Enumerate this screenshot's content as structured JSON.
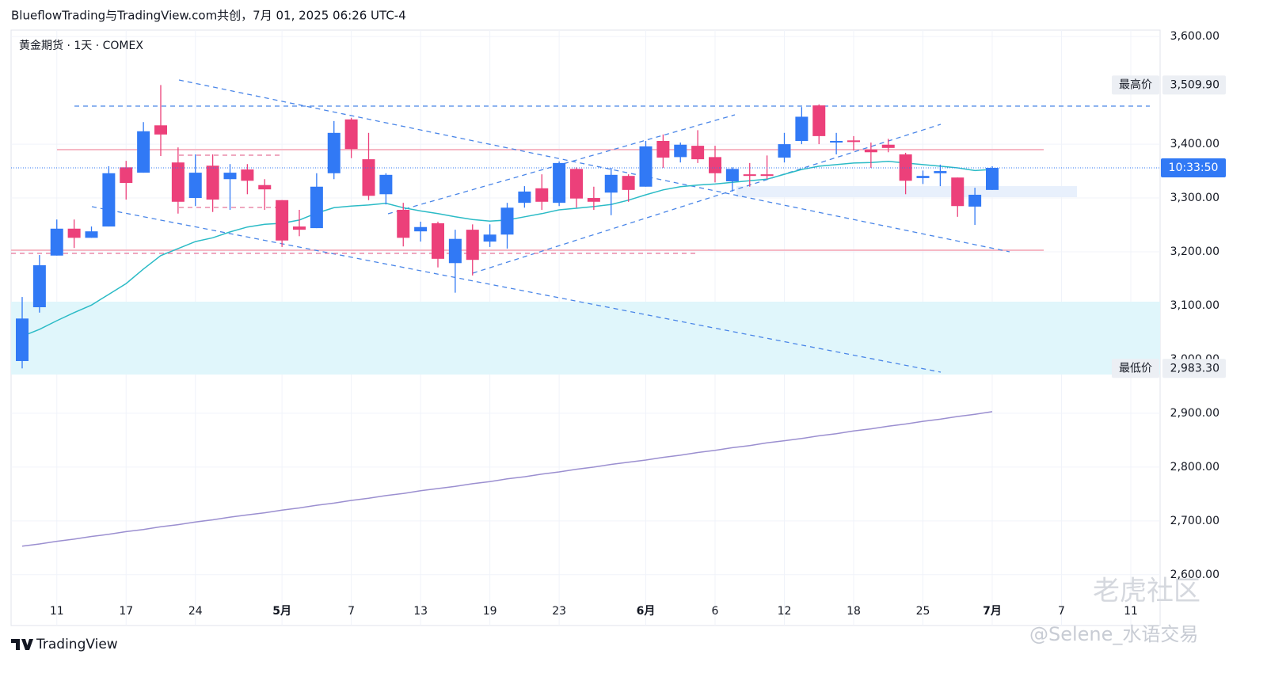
{
  "header": {
    "title": "BlueflowTrading与TradingView.com共创，7月 01, 2025 06:26 UTC-4"
  },
  "footer": {
    "logo": "TradingView",
    "watermark": "老虎社区",
    "author": "@Selene_水语交易"
  },
  "chart_data": {
    "type": "candlestick",
    "title": "黄金期货 · 1天 · COMEX",
    "categories": [
      null,
      null,
      "11",
      null,
      null,
      null,
      "17",
      null,
      null,
      null,
      "24",
      null,
      null,
      null,
      null,
      "5月",
      null,
      null,
      null,
      "7",
      null,
      null,
      null,
      "13",
      null,
      null,
      null,
      "19",
      null,
      null,
      null,
      "23",
      null,
      null,
      null,
      null,
      "6月",
      null,
      null,
      null,
      "6",
      null,
      null,
      null,
      "12",
      null,
      null,
      null,
      "18",
      null,
      null,
      null,
      "25",
      null,
      null,
      null,
      "7月",
      null,
      null,
      null,
      "7",
      null,
      null,
      null,
      "11"
    ],
    "open": [
      2997,
      3097,
      3193,
      3243,
      3226,
      3247,
      3357,
      3347,
      3435,
      3366,
      3300,
      3360,
      3335,
      3353,
      3324,
      3296,
      3247,
      3244,
      3346,
      3446,
      3372,
      3307,
      3278,
      3238,
      3253,
      3179,
      3241,
      3219,
      3232,
      3291,
      3318,
      3291,
      3354,
      3300,
      3310,
      3341,
      3321,
      3406,
      3376,
      3397,
      3376,
      3331,
      3344,
      3344,
      3375,
      3406,
      3472,
      3403,
      3407,
      3390,
      3399,
      3381,
      3337,
      3346,
      3338,
      3284,
      3315,
      null,
      null,
      null,
      null,
      null,
      null,
      null,
      null
    ],
    "high": [
      3116,
      3194,
      3260,
      3260,
      3247,
      3359,
      3369,
      3441,
      3509.9,
      3394,
      3381,
      3381,
      3363,
      3363,
      3335,
      3296,
      3278,
      3346,
      3443,
      3449,
      3421,
      3346,
      3291,
      3256,
      3256,
      3241,
      3251,
      3251,
      3291,
      3322,
      3344,
      3368,
      3357,
      3321,
      3356,
      3344,
      3406,
      3418,
      3403,
      3426,
      3397,
      3357,
      3365,
      3379,
      3421,
      3469,
      3474,
      3421,
      3415,
      3403,
      3410,
      3384,
      3351,
      3362,
      3338,
      3319,
      3359,
      null,
      null,
      null,
      null,
      null,
      null,
      null,
      null
    ],
    "low": [
      2983.3,
      3087,
      3193,
      3207,
      3226,
      3247,
      3297,
      3347,
      3378,
      3271,
      3285,
      3274,
      3278,
      3307,
      3278,
      3209,
      3229,
      3244,
      3335,
      3374,
      3296,
      3288,
      3210,
      3219,
      3171,
      3124,
      3156,
      3209,
      3206,
      3282,
      3278,
      3285,
      3282,
      3278,
      3268,
      3293,
      3321,
      3356,
      3366,
      3365,
      3329,
      3312,
      3321,
      3335,
      3366,
      3400,
      3400,
      3381,
      3388,
      3356,
      3385,
      3307,
      3326,
      3322,
      3265,
      3250,
      3315,
      null,
      null,
      null,
      null,
      null,
      null,
      null,
      null
    ],
    "close": [
      3076,
      3175,
      3243,
      3226,
      3238,
      3346,
      3328,
      3424,
      3418,
      3293,
      3347,
      3297,
      3347,
      3332,
      3316,
      3221,
      3241,
      3321,
      3421,
      3391,
      3304,
      3343,
      3226,
      3246,
      3187,
      3224,
      3185,
      3232,
      3282,
      3312,
      3293,
      3365,
      3299,
      3293,
      3343,
      3315,
      3396,
      3375,
      3399,
      3372,
      3346,
      3354,
      3341,
      3341,
      3400,
      3451,
      3415,
      3406,
      3404,
      3385,
      3393,
      3332,
      3341,
      3350,
      3285,
      3306,
      3356,
      null,
      null,
      null,
      null,
      null,
      null,
      null,
      null
    ],
    "up_color": "#3179f5",
    "down_color": "#ec407a",
    "series": [
      {
        "color": "#2bbbc6",
        "values": [
          3043,
          3056,
          3072,
          3087,
          3101,
          3121,
          3141,
          3168,
          3193,
          3206,
          3219,
          3226,
          3237,
          3246,
          3251,
          3253,
          3259,
          3272,
          3282,
          3285,
          3287,
          3290,
          3282,
          3276,
          3271,
          3265,
          3260,
          3257,
          3259,
          3265,
          3271,
          3278,
          3281,
          3284,
          3288,
          3296,
          3306,
          3315,
          3321,
          3324,
          3326,
          3329,
          3332,
          3335,
          3344,
          3353,
          3359,
          3362,
          3365,
          3366,
          3368,
          3365,
          3362,
          3359,
          3356,
          3351,
          3353,
          null,
          null,
          null,
          null,
          null,
          null,
          null,
          null
        ]
      },
      {
        "color": "#9b8fd0",
        "values": [
          2653,
          2657,
          2662,
          2666,
          2671,
          2675,
          2680,
          2684,
          2689,
          2693,
          2698,
          2702,
          2707,
          2711,
          2715,
          2720,
          2724,
          2729,
          2733,
          2738,
          2742,
          2747,
          2751,
          2756,
          2760,
          2764,
          2769,
          2773,
          2778,
          2782,
          2787,
          2791,
          2796,
          2800,
          2805,
          2809,
          2813,
          2818,
          2822,
          2827,
          2831,
          2836,
          2840,
          2845,
          2849,
          2853,
          2858,
          2862,
          2867,
          2871,
          2876,
          2880,
          2885,
          2889,
          2894,
          2898,
          2903,
          null,
          null,
          null,
          null,
          null,
          null,
          null,
          null
        ]
      }
    ],
    "ylim": [
      2557,
      3612
    ],
    "yticks": [
      {
        "value": 3600,
        "label": "3,600.00"
      },
      {
        "value": 3400,
        "label": "3,400.00"
      },
      {
        "value": 3300,
        "label": "3,300.00"
      },
      {
        "value": 3200,
        "label": "3,200.00"
      },
      {
        "value": 3100,
        "label": "3,100.00"
      },
      {
        "value": 3000,
        "label": "3,000.00"
      },
      {
        "value": 2900,
        "label": "2,900.00"
      },
      {
        "value": 2800,
        "label": "2,800.00"
      },
      {
        "value": 2700,
        "label": "2,700.00"
      },
      {
        "value": 2600,
        "label": "2,600.00"
      }
    ],
    "high_marker": {
      "label": "最高价",
      "value": 3509.9,
      "value_label": "3,509.90"
    },
    "low_marker": {
      "label": "最低价",
      "value": 2983.3,
      "value_label": "2,983.30"
    },
    "countdown": "10:33:50",
    "grid": true
  }
}
